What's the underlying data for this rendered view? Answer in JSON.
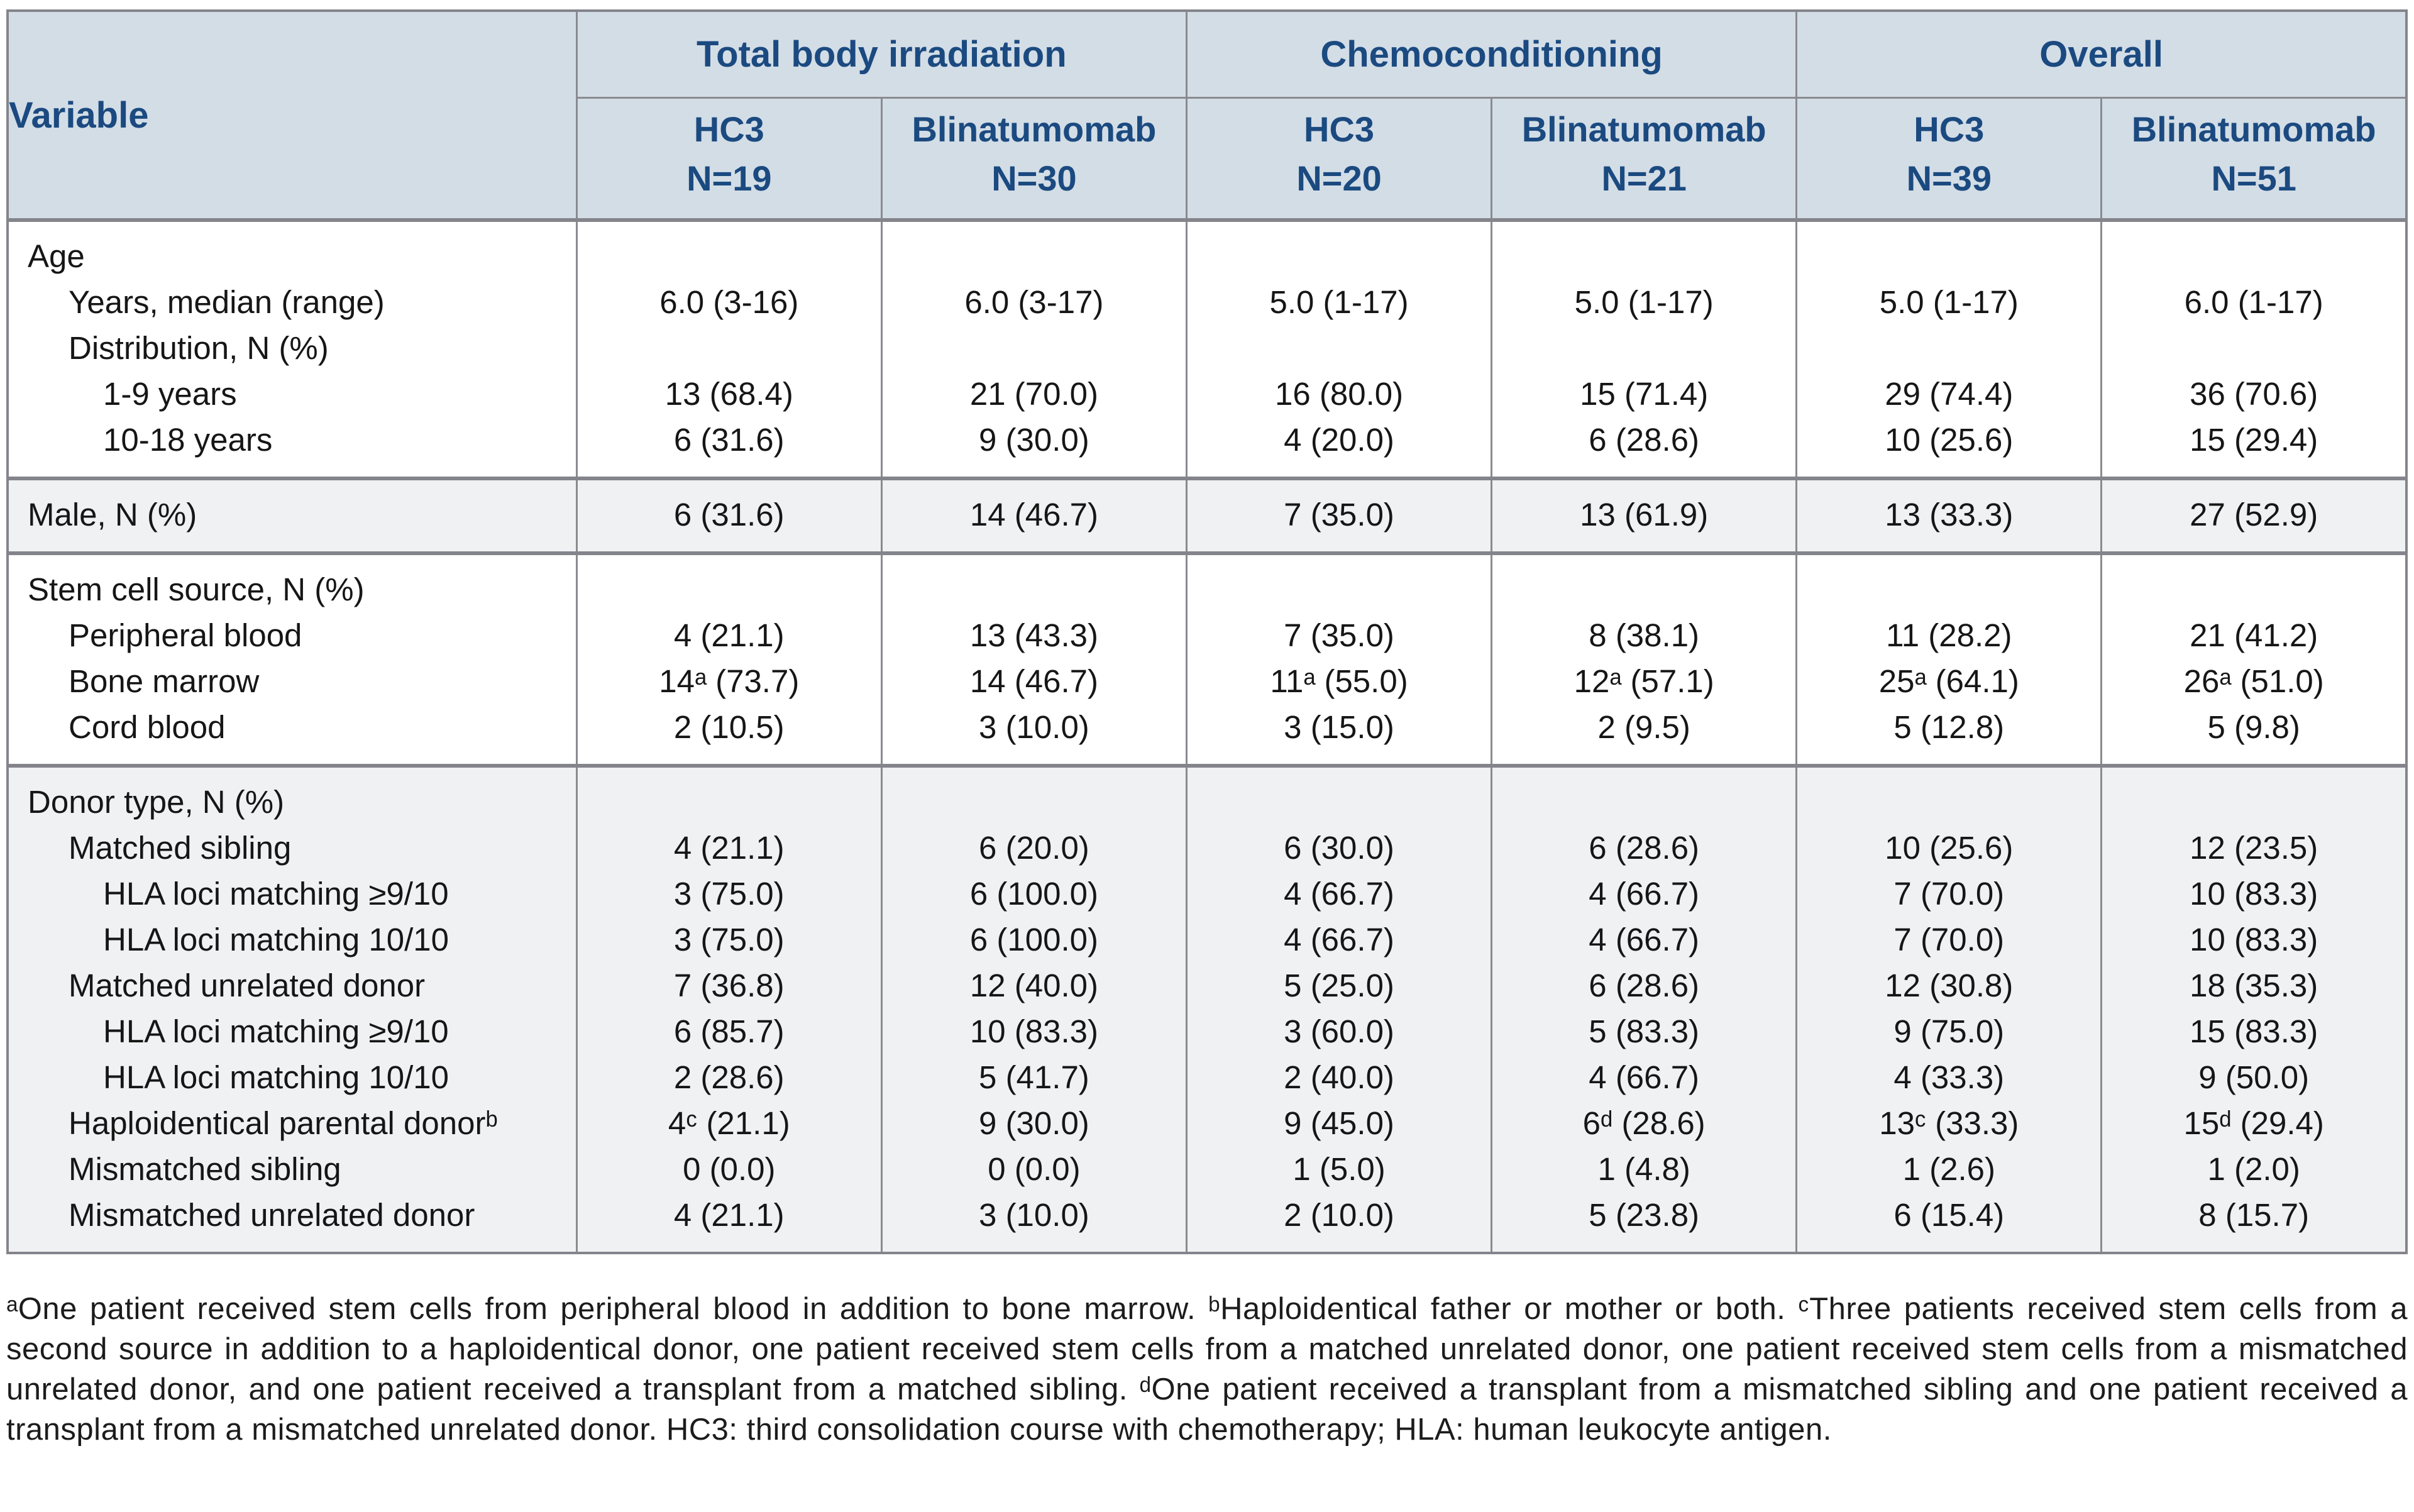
{
  "table": {
    "variable_header": "Variable",
    "groups": [
      {
        "label": "Total body irradiation"
      },
      {
        "label": "Chemoconditioning"
      },
      {
        "label": "Overall"
      }
    ],
    "columns": [
      {
        "name": "HC3",
        "n": "N=19"
      },
      {
        "name": "Blinatumomab",
        "n": "N=30"
      },
      {
        "name": "HC3",
        "n": "N=20"
      },
      {
        "name": "Blinatumomab",
        "n": "N=21"
      },
      {
        "name": "HC3",
        "n": "N=39"
      },
      {
        "name": "Blinatumomab",
        "n": "N=51"
      }
    ],
    "sections": [
      {
        "id": "age",
        "shaded": false,
        "rows": [
          {
            "label": "Age",
            "indent": 0,
            "values": [
              "",
              "",
              "",
              "",
              "",
              ""
            ]
          },
          {
            "label": "Years, median (range)",
            "indent": 1,
            "values": [
              "6.0 (3-16)",
              "6.0 (3-17)",
              "5.0 (1-17)",
              "5.0 (1-17)",
              "5.0 (1-17)",
              "6.0 (1-17)"
            ]
          },
          {
            "label": "Distribution, N (%)",
            "indent": 1,
            "values": [
              "",
              "",
              "",
              "",
              "",
              ""
            ]
          },
          {
            "label": "1-9 years",
            "indent": 2,
            "values": [
              "13 (68.4)",
              "21 (70.0)",
              "16 (80.0)",
              "15 (71.4)",
              "29 (74.4)",
              "36 (70.6)"
            ]
          },
          {
            "label": "10-18 years",
            "indent": 2,
            "values": [
              "6 (31.6)",
              "9 (30.0)",
              "4 (20.0)",
              "6 (28.6)",
              "10 (25.6)",
              "15 (29.4)"
            ]
          }
        ]
      },
      {
        "id": "male",
        "shaded": true,
        "rows": [
          {
            "label": "Male, N (%)",
            "indent": 0,
            "values": [
              "6 (31.6)",
              "14 (46.7)",
              "7 (35.0)",
              "13 (61.9)",
              "13 (33.3)",
              "27 (52.9)"
            ]
          }
        ]
      },
      {
        "id": "stem-cell-source",
        "shaded": false,
        "rows": [
          {
            "label": "Stem cell source, N (%)",
            "indent": 0,
            "values": [
              "",
              "",
              "",
              "",
              "",
              ""
            ]
          },
          {
            "label": "Peripheral blood",
            "indent": 1,
            "values": [
              "4 (21.1)",
              "13 (43.3)",
              "7 (35.0)",
              "8 (38.1)",
              "11 (28.2)",
              "21 (41.2)"
            ]
          },
          {
            "label": "Bone marrow",
            "indent": 1,
            "values": [
              "14ᵃ (73.7)",
              "14 (46.7)",
              "11ᵃ (55.0)",
              "12ᵃ (57.1)",
              "25ᵃ (64.1)",
              "26ᵃ (51.0)"
            ]
          },
          {
            "label": "Cord blood",
            "indent": 1,
            "values": [
              "2 (10.5)",
              "3 (10.0)",
              "3 (15.0)",
              "2 (9.5)",
              "5 (12.8)",
              "5 (9.8)"
            ]
          }
        ]
      },
      {
        "id": "donor-type",
        "shaded": true,
        "rows": [
          {
            "label": "Donor type, N (%)",
            "indent": 0,
            "values": [
              "",
              "",
              "",
              "",
              "",
              ""
            ]
          },
          {
            "label": "Matched sibling",
            "indent": 1,
            "values": [
              "4 (21.1)",
              "6 (20.0)",
              "6 (30.0)",
              "6 (28.6)",
              "10 (25.6)",
              "12 (23.5)"
            ]
          },
          {
            "label": "HLA loci matching ≥9/10",
            "indent": 2,
            "values": [
              "3 (75.0)",
              "6 (100.0)",
              "4 (66.7)",
              "4 (66.7)",
              "7 (70.0)",
              "10 (83.3)"
            ]
          },
          {
            "label": "HLA loci matching 10/10",
            "indent": 2,
            "values": [
              "3 (75.0)",
              "6 (100.0)",
              "4 (66.7)",
              "4 (66.7)",
              "7 (70.0)",
              "10 (83.3)"
            ]
          },
          {
            "label": "Matched unrelated donor",
            "indent": 1,
            "values": [
              "7 (36.8)",
              "12 (40.0)",
              "5 (25.0)",
              "6 (28.6)",
              "12 (30.8)",
              "18 (35.3)"
            ]
          },
          {
            "label": "HLA loci matching ≥9/10",
            "indent": 2,
            "values": [
              "6 (85.7)",
              "10 (83.3)",
              "3 (60.0)",
              "5 (83.3)",
              "9 (75.0)",
              "15 (83.3)"
            ]
          },
          {
            "label": "HLA loci matching 10/10",
            "indent": 2,
            "values": [
              "2 (28.6)",
              "5 (41.7)",
              "2 (40.0)",
              "4 (66.7)",
              "4 (33.3)",
              "9 (50.0)"
            ]
          },
          {
            "label": "Haploidentical parental donorᵇ",
            "indent": 1,
            "values": [
              "4ᶜ (21.1)",
              "9 (30.0)",
              "9 (45.0)",
              "6ᵈ (28.6)",
              "13ᶜ (33.3)",
              "15ᵈ (29.4)"
            ]
          },
          {
            "label": "Mismatched sibling",
            "indent": 1,
            "values": [
              "0 (0.0)",
              "0 (0.0)",
              "1 (5.0)",
              "1 (4.8)",
              "1 (2.6)",
              "1 (2.0)"
            ]
          },
          {
            "label": "Mismatched unrelated donor",
            "indent": 1,
            "values": [
              "4 (21.1)",
              "3 (10.0)",
              "2 (10.0)",
              "5 (23.8)",
              "6 (15.4)",
              "8 (15.7)"
            ]
          }
        ]
      }
    ]
  },
  "footnote": "ᵃOne patient received stem cells from peripheral blood in addition to bone marrow. ᵇHaploidentical father or mother or both. ᶜThree patients received stem cells from a second source in addition to a haploidentical donor, one patient received stem cells from a matched unrelated donor, one patient received stem cells from a mismatched unrelated donor, and one patient received a transplant from a matched sibling. ᵈOne patient received a transplant from a mismatched sibling and one patient received a transplant from a mismatched unrelated donor. HC3: third consolidation course with chemotherapy; HLA: human leukocyte antigen.",
  "colors": {
    "header_bg": "#d3dde6",
    "header_text": "#1b4a80",
    "shaded_row_bg": "#f0f1f2",
    "border": "#8a8a90",
    "body_text": "#161616"
  }
}
